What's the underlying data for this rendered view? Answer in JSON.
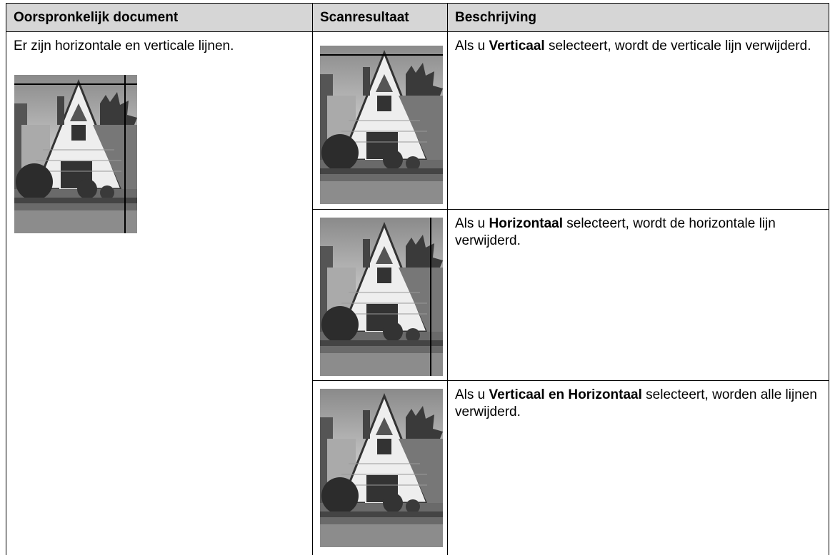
{
  "table": {
    "header": [
      "Oorspronkelijk document",
      "Scanresultaat",
      "Beschrijving"
    ],
    "original": "Er zijn horizontale en verticale lijnen.",
    "rows": [
      {
        "before": "Als u ",
        "bold": "Verticaal",
        "after": " selecteert, wordt de verticale lijn verwijderd."
      },
      {
        "before": "Als u ",
        "bold": "Horizontaal",
        "after": " selecteert, wordt de horizontale lijn verwijderd."
      },
      {
        "before": "Als u ",
        "bold": "Verticaal en Horizontaal",
        "after": " selecteert, worden alle lijnen verwijderd."
      }
    ]
  }
}
